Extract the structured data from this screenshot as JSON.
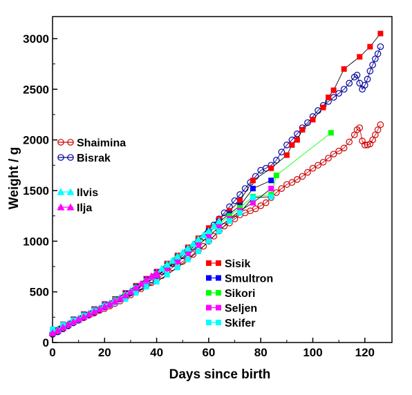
{
  "chart_data": {
    "type": "scatter",
    "title": "",
    "xlabel": "Days since birth",
    "ylabel": "Weight / g",
    "xlim": [
      0,
      130
    ],
    "ylim": [
      0,
      3200
    ],
    "xticks": [
      0,
      20,
      40,
      60,
      80,
      100,
      120
    ],
    "yticks": [
      0,
      500,
      1000,
      1500,
      2000,
      2500,
      3000
    ],
    "x_tick_labels": [
      "0",
      "20",
      "40",
      "60",
      "80",
      "100",
      "120"
    ],
    "y_tick_labels": [
      "0",
      "500",
      "1000",
      "1500",
      "2000",
      "2500",
      "3000"
    ],
    "grid": false,
    "legend_groups": [
      {
        "position": "left-upper",
        "entries": [
          "Shaimina",
          "Bisrak"
        ]
      },
      {
        "position": "left-middle",
        "entries": [
          "Ilvis",
          "Ilja"
        ]
      },
      {
        "position": "lower-right",
        "entries": [
          "Sisik",
          "Smultron",
          "Sikori",
          "Seljen",
          "Skifer"
        ]
      }
    ],
    "series": [
      {
        "name": "Shaimina",
        "marker": "open-circle",
        "color": "#cc0000",
        "line": "#cc0000",
        "x": [
          0,
          2,
          4,
          6,
          8,
          10,
          12,
          14,
          16,
          18,
          20,
          22,
          24,
          26,
          28,
          30,
          32,
          34,
          36,
          38,
          40,
          42,
          44,
          46,
          48,
          50,
          52,
          54,
          56,
          58,
          60,
          62,
          64,
          66,
          68,
          70,
          72,
          74,
          76,
          78,
          80,
          82,
          84,
          86,
          88,
          90,
          92,
          94,
          96,
          98,
          100,
          102,
          104,
          106,
          108,
          110,
          112,
          114,
          116,
          117,
          118,
          119,
          120,
          121,
          122,
          123,
          124,
          125,
          126
        ],
        "y": [
          90,
          110,
          140,
          170,
          195,
          220,
          245,
          270,
          290,
          315,
          335,
          360,
          385,
          410,
          440,
          470,
          500,
          530,
          560,
          590,
          620,
          660,
          700,
          740,
          770,
          800,
          830,
          870,
          910,
          950,
          1000,
          1050,
          1100,
          1150,
          1180,
          1220,
          1260,
          1280,
          1300,
          1320,
          1350,
          1380,
          1430,
          1480,
          1520,
          1560,
          1580,
          1610,
          1640,
          1680,
          1720,
          1750,
          1780,
          1820,
          1860,
          1890,
          1920,
          1980,
          2050,
          2100,
          2120,
          1990,
          1950,
          1950,
          1960,
          2000,
          2050,
          2100,
          2150
        ]
      },
      {
        "name": "Bisrak",
        "marker": "open-circle",
        "color": "#000099",
        "line": "#000099",
        "x": [
          0,
          2,
          4,
          6,
          8,
          10,
          12,
          14,
          16,
          18,
          20,
          22,
          24,
          26,
          28,
          30,
          32,
          34,
          36,
          38,
          40,
          42,
          44,
          46,
          48,
          50,
          52,
          54,
          56,
          58,
          60,
          62,
          64,
          66,
          68,
          70,
          72,
          74,
          76,
          78,
          80,
          82,
          84,
          86,
          88,
          90,
          92,
          94,
          96,
          98,
          100,
          102,
          104,
          106,
          108,
          110,
          112,
          114,
          116,
          117,
          118,
          119,
          120,
          121,
          122,
          123,
          124,
          125,
          126
        ],
        "y": [
          80,
          105,
          135,
          165,
          195,
          220,
          250,
          275,
          300,
          325,
          350,
          375,
          400,
          430,
          460,
          490,
          520,
          550,
          585,
          620,
          660,
          700,
          740,
          780,
          820,
          860,
          900,
          940,
          990,
          1040,
          1100,
          1160,
          1220,
          1280,
          1340,
          1400,
          1460,
          1520,
          1580,
          1640,
          1700,
          1720,
          1750,
          1800,
          1880,
          1950,
          2000,
          2060,
          2120,
          2170,
          2230,
          2290,
          2340,
          2380,
          2420,
          2460,
          2500,
          2560,
          2620,
          2640,
          2560,
          2500,
          2540,
          2600,
          2680,
          2740,
          2800,
          2850,
          2920
        ]
      },
      {
        "name": "Ilvis",
        "marker": "filled-triangle",
        "color": "#00ffff",
        "line": "#00ffff",
        "x": [
          0,
          2,
          4,
          6,
          8,
          10,
          12,
          14,
          16,
          18,
          20,
          22,
          24,
          26,
          28,
          30,
          32,
          34,
          36,
          38,
          40,
          42,
          44,
          46,
          48,
          50,
          52,
          54,
          56,
          58,
          60,
          62,
          64
        ],
        "y": [
          100,
          130,
          160,
          190,
          215,
          240,
          265,
          290,
          315,
          340,
          365,
          390,
          415,
          445,
          475,
          510,
          545,
          580,
          615,
          650,
          690,
          730,
          770,
          810,
          850,
          890,
          930,
          975,
          1020,
          1060,
          1100,
          1150,
          1200
        ]
      },
      {
        "name": "Ilja",
        "marker": "filled-triangle",
        "color": "#ff00ff",
        "line": "#ff00ff",
        "x": [
          0,
          2,
          4,
          6,
          8,
          10,
          12,
          14,
          16,
          18,
          20,
          22,
          24,
          26,
          28,
          30,
          32,
          34,
          36,
          38,
          40
        ],
        "y": [
          95,
          120,
          150,
          180,
          205,
          230,
          255,
          280,
          305,
          330,
          355,
          380,
          405,
          435,
          465,
          500,
          540,
          580,
          620,
          655,
          690
        ]
      },
      {
        "name": "Sisik",
        "marker": "filled-square",
        "color": "#ff0000",
        "line": "#000000",
        "x": [
          0,
          4,
          8,
          12,
          16,
          20,
          24,
          28,
          32,
          36,
          40,
          44,
          48,
          52,
          56,
          60,
          64,
          68,
          72,
          77,
          84,
          90,
          92,
          94,
          96,
          100,
          104,
          106,
          108,
          112,
          118,
          122,
          126
        ],
        "y": [
          130,
          180,
          230,
          280,
          330,
          380,
          430,
          490,
          560,
          630,
          700,
          780,
          860,
          940,
          1030,
          1130,
          1220,
          1300,
          1400,
          1600,
          1720,
          1850,
          1950,
          2000,
          2100,
          2200,
          2320,
          2420,
          2490,
          2700,
          2820,
          2920,
          3050
        ]
      },
      {
        "name": "Smultron",
        "marker": "filled-square",
        "color": "#0000ff",
        "line": "#000000",
        "x": [
          0,
          4,
          8,
          12,
          16,
          20,
          24,
          28,
          32,
          36,
          40,
          44,
          48,
          52,
          56,
          60,
          64,
          68,
          72,
          77,
          84
        ],
        "y": [
          125,
          175,
          225,
          275,
          325,
          375,
          425,
          480,
          550,
          620,
          690,
          760,
          840,
          920,
          1000,
          1100,
          1190,
          1270,
          1350,
          1520,
          1600
        ]
      },
      {
        "name": "Sikori",
        "marker": "filled-square",
        "color": "#00ff00",
        "line": "#00ff00",
        "x": [
          0,
          4,
          8,
          12,
          16,
          20,
          24,
          28,
          32,
          36,
          40,
          44,
          48,
          52,
          56,
          60,
          64,
          68,
          72,
          77,
          84,
          86,
          107
        ],
        "y": [
          120,
          170,
          220,
          270,
          320,
          370,
          420,
          470,
          540,
          610,
          680,
          750,
          830,
          910,
          990,
          1080,
          1170,
          1250,
          1330,
          1440,
          1460,
          1650,
          2070
        ]
      },
      {
        "name": "Seljen",
        "marker": "filled-square",
        "color": "#ff00ff",
        "line": "#000000",
        "x": [
          0,
          4,
          8,
          12,
          16,
          20,
          24,
          28,
          32,
          36,
          40,
          44,
          48,
          52,
          56,
          60,
          64,
          68,
          72,
          77,
          84
        ],
        "y": [
          115,
          165,
          215,
          265,
          315,
          365,
          410,
          455,
          520,
          590,
          660,
          730,
          800,
          880,
          960,
          1050,
          1140,
          1220,
          1300,
          1380,
          1520
        ]
      },
      {
        "name": "Skifer",
        "marker": "filled-square",
        "color": "#00ffff",
        "line": "#000000",
        "x": [
          0,
          4,
          8,
          12,
          16,
          20,
          24,
          28,
          32,
          36,
          40,
          44,
          48,
          52,
          56,
          60,
          64,
          68,
          72,
          77,
          84
        ],
        "y": [
          130,
          175,
          220,
          265,
          310,
          355,
          395,
          430,
          490,
          550,
          600,
          670,
          740,
          820,
          900,
          1000,
          1100,
          1200,
          1280,
          1430,
          1440
        ]
      }
    ]
  },
  "colors": {
    "axis": "#000000",
    "background": "#ffffff"
  }
}
